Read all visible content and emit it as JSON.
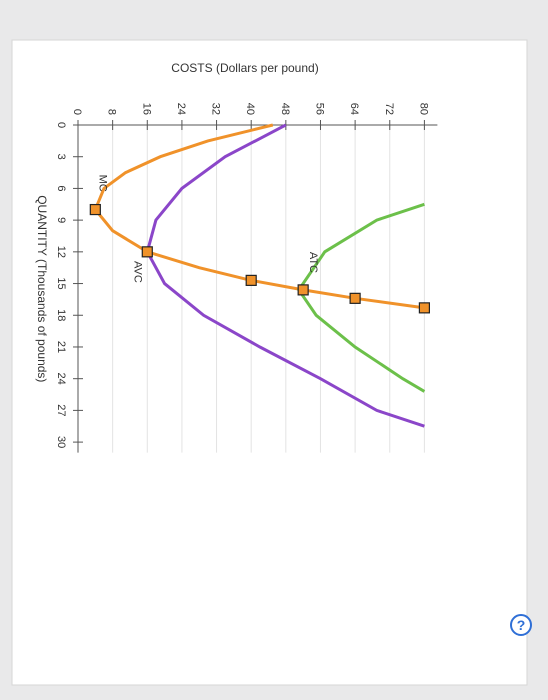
{
  "chart_data": {
    "type": "line",
    "y_label": "COSTS (Dollars per pound)",
    "x_label": "QUANTITY (Thousands of pounds)",
    "xlim": [
      0,
      31
    ],
    "ylim": [
      0,
      83
    ],
    "xticks": [
      0,
      3,
      6,
      9,
      12,
      15,
      18,
      21,
      24,
      27,
      30
    ],
    "yticks": [
      0,
      8,
      16,
      24,
      32,
      40,
      48,
      56,
      64,
      72,
      80
    ],
    "grid": true,
    "series": [
      {
        "name": "MC",
        "color": "#f0922a",
        "x": [
          0,
          1.5,
          3,
          4.5,
          6,
          8,
          10,
          12,
          13.5,
          14.7,
          15.6,
          16.4,
          17.3
        ],
        "values": [
          45,
          30,
          19,
          11,
          6,
          4,
          8,
          16,
          28,
          40,
          52,
          64,
          80
        ],
        "label_at": [
          5.5,
          5
        ],
        "points": {
          "x": [
            8,
            12,
            14.7,
            15.6,
            16.4,
            17.3
          ],
          "values": [
            4,
            16,
            40,
            52,
            64,
            80
          ]
        }
      },
      {
        "name": "AVC",
        "color": "#8b46c9",
        "x": [
          0,
          3,
          6,
          9,
          12,
          15,
          18,
          21,
          24,
          27,
          28.5
        ],
        "values": [
          48,
          34,
          24,
          18,
          16,
          20,
          29,
          42,
          56,
          69,
          80
        ],
        "label_at": [
          13.9,
          13
        ]
      },
      {
        "name": "ATC",
        "color": "#6cc04a",
        "x": [
          7.5,
          9,
          12,
          15.6,
          18,
          21,
          24,
          25.2
        ],
        "values": [
          80,
          69,
          57,
          51,
          55,
          64,
          75,
          80
        ],
        "label_at": [
          13,
          53.6
        ]
      }
    ]
  },
  "help_button": "?"
}
